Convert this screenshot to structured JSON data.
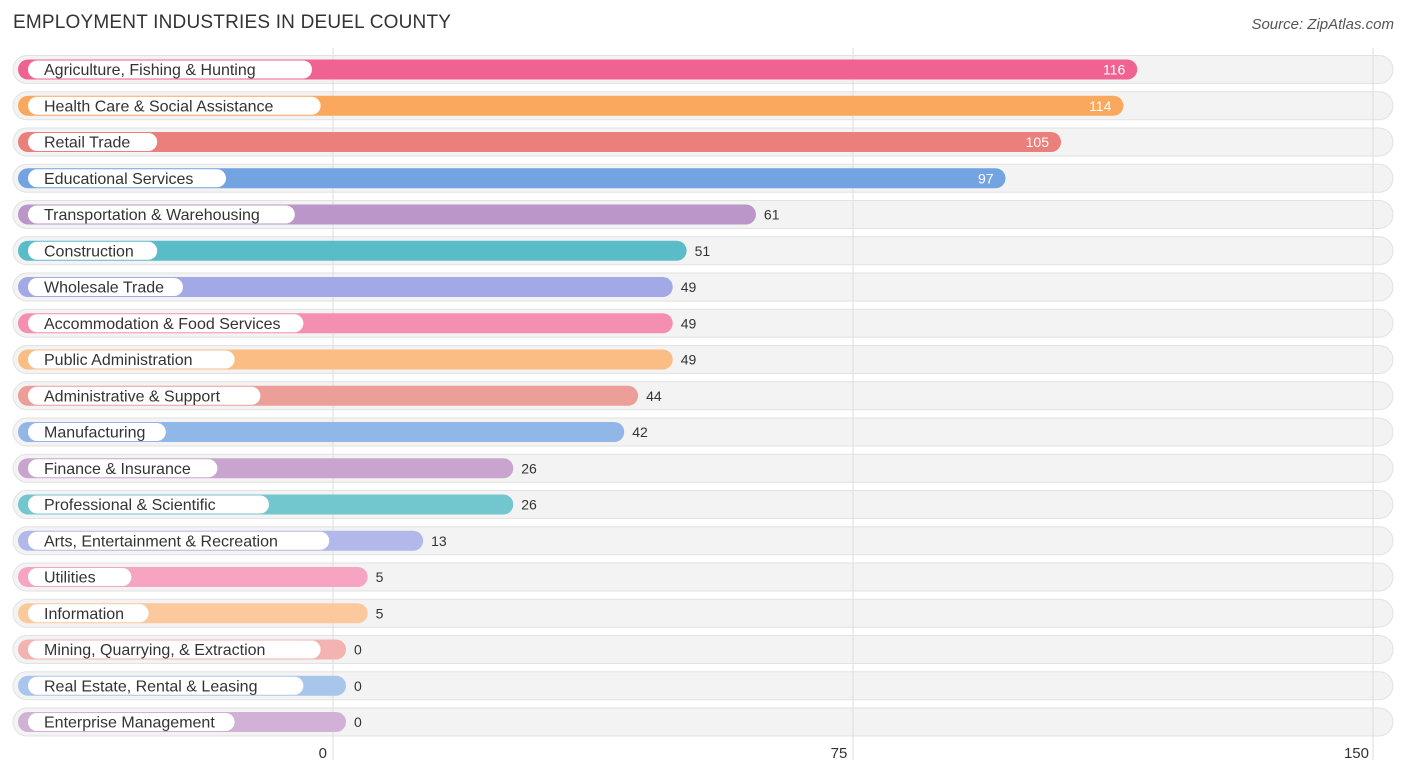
{
  "chart_data": {
    "type": "bar",
    "orientation": "horizontal",
    "title": "EMPLOYMENT INDUSTRIES IN DEUEL COUNTY",
    "source": "Source: ZipAtlas.com",
    "xlim": [
      0,
      150
    ],
    "xticks": [
      0,
      75,
      150
    ],
    "grid": true,
    "categories": [
      "Agriculture, Fishing & Hunting",
      "Health Care & Social Assistance",
      "Retail Trade",
      "Educational Services",
      "Transportation & Warehousing",
      "Construction",
      "Wholesale Trade",
      "Accommodation & Food Services",
      "Public Administration",
      "Administrative & Support",
      "Manufacturing",
      "Finance & Insurance",
      "Professional & Scientific",
      "Arts, Entertainment & Recreation",
      "Utilities",
      "Information",
      "Mining, Quarrying, & Extraction",
      "Real Estate, Rental & Leasing",
      "Enterprise Management"
    ],
    "values": [
      116,
      114,
      105,
      97,
      61,
      51,
      49,
      49,
      49,
      44,
      42,
      26,
      26,
      13,
      5,
      5,
      0,
      0,
      0
    ],
    "colors": [
      "#f06292",
      "#f9a85d",
      "#eb7f7b",
      "#73a3e0",
      "#bb97c9",
      "#5bbcc9",
      "#a3a9e6",
      "#f48fb1",
      "#fbbd84",
      "#ec9e98",
      "#90b7e8",
      "#c9a4cf",
      "#72c6cd",
      "#b2b8ea",
      "#f6a4c2",
      "#fcc99c",
      "#f3b3b0",
      "#a8c6ec",
      "#d1b1d6"
    ]
  }
}
